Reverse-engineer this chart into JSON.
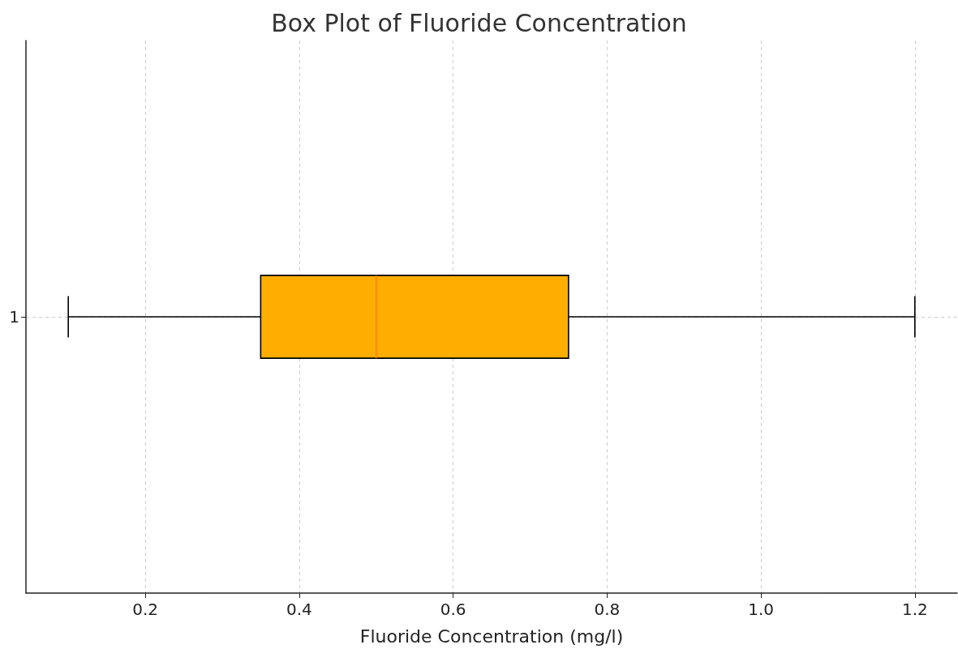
{
  "chart_data": {
    "type": "box",
    "title": "Box Plot of Fluoride Concentration",
    "xlabel": "Fluoride Concentration (mg/l)",
    "orientation": "horizontal",
    "categories": [
      "1"
    ],
    "series": [
      {
        "color": "#ffae00",
        "boxes": [
          {
            "low": 0.1,
            "q1": 0.35,
            "median": 0.5,
            "q3": 0.75,
            "high": 1.2
          }
        ]
      }
    ],
    "xlim": [
      0.045,
      1.255
    ],
    "xticks": [
      0.2,
      0.4,
      0.6,
      0.8,
      {
        "value": 1,
        "label": "1.0"
      },
      1.2
    ],
    "grid": true
  }
}
